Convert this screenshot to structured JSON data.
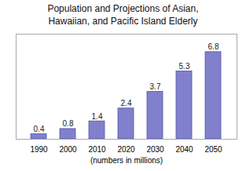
{
  "chart_data": {
    "type": "bar",
    "title": "Population and Projections of Asian,\nHawaiian, and Pacific Island Elderly",
    "xlabel": "(numbers in millions)",
    "categories": [
      "1990",
      "2000",
      "2010",
      "2020",
      "2030",
      "2040",
      "2050"
    ],
    "values": [
      0.4,
      0.8,
      1.4,
      2.4,
      3.7,
      5.3,
      6.8
    ],
    "color": "#8080cc",
    "ylim": [
      0,
      8.2
    ],
    "data_labels": true,
    "tick_labels": "x",
    "grid": false
  }
}
